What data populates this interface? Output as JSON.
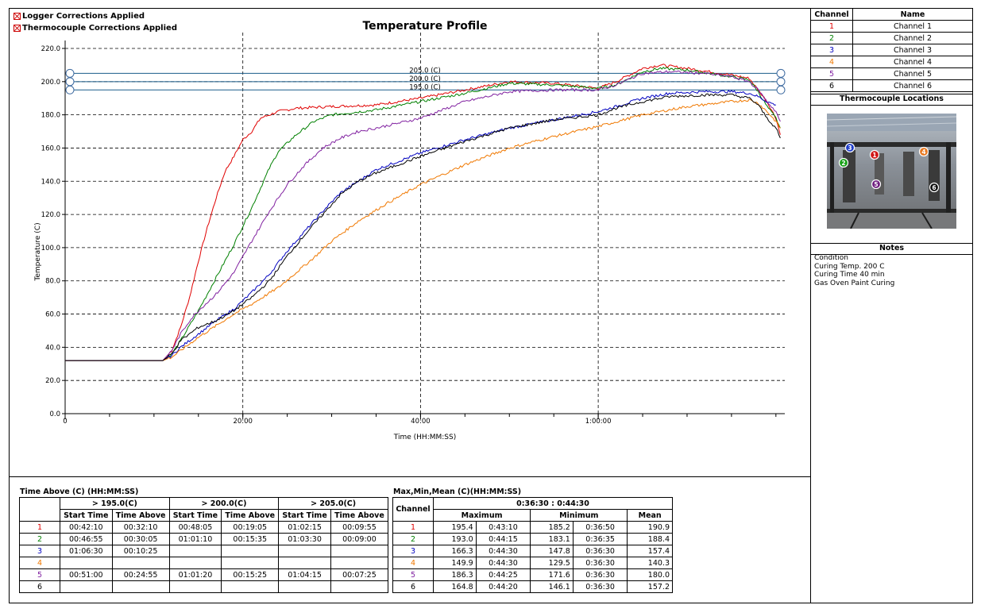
{
  "legend_flags": {
    "logger": "Logger Corrections Applied",
    "thermocouple": "Thermocouple Corrections Applied"
  },
  "chart_data": {
    "type": "line",
    "title": "Temperature Profile",
    "xlabel": "Time (HH:MM:SS)",
    "ylabel": "Temperature (C)",
    "xlim": [
      0,
      81
    ],
    "ylim": [
      0,
      220
    ],
    "x_unit": "minutes",
    "x_ticks": [
      {
        "value": 0,
        "label": "0"
      },
      {
        "value": 20,
        "label": "20:00"
      },
      {
        "value": 40,
        "label": "40:00"
      },
      {
        "value": 60,
        "label": "1:00:00"
      }
    ],
    "y_ticks": [
      "0.0",
      "20.0",
      "40.0",
      "60.0",
      "80.0",
      "100.0",
      "120.0",
      "140.0",
      "160.0",
      "180.0",
      "200.0",
      "220.0"
    ],
    "grid": true,
    "thresholds": [
      {
        "value": 205,
        "label": "205.0 (C)"
      },
      {
        "value": 200,
        "label": "200.0 (C)"
      },
      {
        "value": 195,
        "label": "195.0 (C)"
      }
    ],
    "series": [
      {
        "name": "Channel 1",
        "color": "#e00000",
        "points": [
          [
            0,
            32
          ],
          [
            11,
            32
          ],
          [
            12,
            38
          ],
          [
            13,
            52
          ],
          [
            14,
            70
          ],
          [
            15,
            92
          ],
          [
            16,
            112
          ],
          [
            17,
            130
          ],
          [
            18,
            146
          ],
          [
            19,
            155
          ],
          [
            20,
            165
          ],
          [
            21,
            170
          ],
          [
            22,
            178
          ],
          [
            24,
            182
          ],
          [
            26,
            184
          ],
          [
            30,
            185
          ],
          [
            35,
            186
          ],
          [
            40,
            190
          ],
          [
            45,
            195
          ],
          [
            50,
            200
          ],
          [
            55,
            199
          ],
          [
            60,
            196
          ],
          [
            62,
            200
          ],
          [
            65,
            208
          ],
          [
            67,
            210
          ],
          [
            70,
            208
          ],
          [
            75,
            204
          ],
          [
            77,
            202
          ],
          [
            78,
            195
          ],
          [
            79,
            188
          ],
          [
            80,
            178
          ],
          [
            80.5,
            168
          ]
        ]
      },
      {
        "name": "Channel 2",
        "color": "#008000",
        "points": [
          [
            0,
            32
          ],
          [
            11,
            32
          ],
          [
            12,
            36
          ],
          [
            13,
            44
          ],
          [
            15,
            62
          ],
          [
            17,
            82
          ],
          [
            19,
            102
          ],
          [
            21,
            124
          ],
          [
            22,
            136
          ],
          [
            23,
            148
          ],
          [
            24,
            158
          ],
          [
            26,
            168
          ],
          [
            28,
            176
          ],
          [
            30,
            180
          ],
          [
            35,
            183
          ],
          [
            40,
            188
          ],
          [
            45,
            193
          ],
          [
            50,
            199
          ],
          [
            55,
            198
          ],
          [
            60,
            196
          ],
          [
            62,
            198
          ],
          [
            65,
            206
          ],
          [
            67,
            208
          ],
          [
            70,
            207
          ],
          [
            75,
            203
          ],
          [
            77,
            201
          ],
          [
            78,
            194
          ],
          [
            79,
            185
          ],
          [
            80,
            178
          ],
          [
            80.5,
            172
          ]
        ]
      },
      {
        "name": "Channel 3",
        "color": "#0000c0",
        "points": [
          [
            0,
            32
          ],
          [
            11,
            32
          ],
          [
            12,
            35
          ],
          [
            13,
            40
          ],
          [
            15,
            48
          ],
          [
            17,
            56
          ],
          [
            19,
            63
          ],
          [
            21,
            73
          ],
          [
            23,
            84
          ],
          [
            25,
            98
          ],
          [
            27,
            110
          ],
          [
            29,
            122
          ],
          [
            31,
            133
          ],
          [
            33,
            140
          ],
          [
            35,
            147
          ],
          [
            40,
            157
          ],
          [
            45,
            165
          ],
          [
            50,
            172
          ],
          [
            55,
            177
          ],
          [
            60,
            182
          ],
          [
            62,
            185
          ],
          [
            65,
            190
          ],
          [
            68,
            193
          ],
          [
            72,
            194
          ],
          [
            75,
            194
          ],
          [
            77,
            193
          ],
          [
            78,
            191
          ],
          [
            79,
            188
          ],
          [
            80,
            186
          ]
        ]
      },
      {
        "name": "Channel 4",
        "color": "#f07800",
        "points": [
          [
            0,
            32
          ],
          [
            11,
            32
          ],
          [
            12,
            34
          ],
          [
            13,
            38
          ],
          [
            15,
            46
          ],
          [
            17,
            53
          ],
          [
            19,
            60
          ],
          [
            21,
            66
          ],
          [
            24,
            76
          ],
          [
            26,
            85
          ],
          [
            28,
            94
          ],
          [
            30,
            104
          ],
          [
            33,
            116
          ],
          [
            36,
            126
          ],
          [
            40,
            138
          ],
          [
            45,
            150
          ],
          [
            50,
            160
          ],
          [
            55,
            167
          ],
          [
            60,
            173
          ],
          [
            65,
            180
          ],
          [
            70,
            185
          ],
          [
            75,
            188
          ],
          [
            77,
            189
          ],
          [
            78,
            187
          ],
          [
            79,
            182
          ],
          [
            80,
            176
          ],
          [
            80.5,
            172
          ]
        ]
      },
      {
        "name": "Channel 5",
        "color": "#8020a0",
        "points": [
          [
            0,
            32
          ],
          [
            11,
            32
          ],
          [
            12,
            38
          ],
          [
            13,
            48
          ],
          [
            14,
            56
          ],
          [
            15,
            62
          ],
          [
            17,
            72
          ],
          [
            19,
            85
          ],
          [
            21,
            104
          ],
          [
            23,
            122
          ],
          [
            25,
            138
          ],
          [
            27,
            150
          ],
          [
            29,
            160
          ],
          [
            31,
            166
          ],
          [
            33,
            170
          ],
          [
            35,
            172
          ],
          [
            40,
            178
          ],
          [
            42,
            182
          ],
          [
            45,
            188
          ],
          [
            50,
            194
          ],
          [
            55,
            195
          ],
          [
            60,
            195
          ],
          [
            62,
            198
          ],
          [
            65,
            205
          ],
          [
            68,
            206
          ],
          [
            72,
            205
          ],
          [
            75,
            203
          ],
          [
            77,
            200
          ],
          [
            78,
            195
          ],
          [
            79,
            188
          ],
          [
            80,
            182
          ],
          [
            80.5,
            176
          ]
        ]
      },
      {
        "name": "Channel 6",
        "color": "#000000",
        "points": [
          [
            0,
            32
          ],
          [
            11,
            32
          ],
          [
            12,
            36
          ],
          [
            13,
            44
          ],
          [
            15,
            52
          ],
          [
            17,
            56
          ],
          [
            19,
            62
          ],
          [
            21,
            70
          ],
          [
            23,
            80
          ],
          [
            25,
            95
          ],
          [
            27,
            108
          ],
          [
            29,
            120
          ],
          [
            31,
            132
          ],
          [
            33,
            140
          ],
          [
            35,
            145
          ],
          [
            40,
            155
          ],
          [
            45,
            164
          ],
          [
            50,
            172
          ],
          [
            55,
            177
          ],
          [
            60,
            180
          ],
          [
            62,
            184
          ],
          [
            65,
            188
          ],
          [
            68,
            191
          ],
          [
            72,
            192
          ],
          [
            75,
            192
          ],
          [
            77,
            190
          ],
          [
            78,
            186
          ],
          [
            79,
            178
          ],
          [
            80,
            172
          ],
          [
            80.5,
            166
          ]
        ]
      }
    ]
  },
  "channel_table": {
    "headers": [
      "Channel",
      "Name"
    ],
    "rows": [
      {
        "ch": "1",
        "name": "Channel 1",
        "color": "#e00000"
      },
      {
        "ch": "2",
        "name": "Channel 2",
        "color": "#008000"
      },
      {
        "ch": "3",
        "name": "Channel 3",
        "color": "#0000c0"
      },
      {
        "ch": "4",
        "name": "Channel 4",
        "color": "#f07800"
      },
      {
        "ch": "5",
        "name": "Channel 5",
        "color": "#8020a0"
      },
      {
        "ch": "6",
        "name": "Channel 6",
        "color": "#000000"
      }
    ]
  },
  "thermocouple_locations": {
    "title": "Thermocouple Locations",
    "markers": [
      {
        "label": "3",
        "color": "#1e3cc8"
      },
      {
        "label": "1",
        "color": "#d01818"
      },
      {
        "label": "4",
        "color": "#e87820"
      },
      {
        "label": "2",
        "color": "#18a018"
      },
      {
        "label": "5",
        "color": "#702080"
      },
      {
        "label": "6",
        "color": "#101010"
      }
    ]
  },
  "notes": {
    "title": "Notes",
    "lines": [
      "Condition",
      "Curing Temp. 200 C",
      "Curing Time 40 min",
      "Gas Oven Paint Curing"
    ]
  },
  "time_above": {
    "caption": "Time Above (C) (HH:MM:SS)",
    "groups": [
      "> 195.0(C)",
      "> 200.0(C)",
      "> 205.0(C)"
    ],
    "sub_headers": [
      "Start Time",
      "Time Above"
    ],
    "rows": [
      {
        "ch": "1",
        "color": "#e00000",
        "cells": [
          "00:42:10",
          "00:32:10",
          "00:48:05",
          "00:19:05",
          "01:02:15",
          "00:09:55"
        ]
      },
      {
        "ch": "2",
        "color": "#008000",
        "cells": [
          "00:46:55",
          "00:30:05",
          "01:01:10",
          "00:15:35",
          "01:03:30",
          "00:09:00"
        ]
      },
      {
        "ch": "3",
        "color": "#0000c0",
        "cells": [
          "01:06:30",
          "00:10:25",
          "",
          "",
          "",
          ""
        ]
      },
      {
        "ch": "4",
        "color": "#f07800",
        "cells": [
          "",
          "",
          "",
          "",
          "",
          ""
        ]
      },
      {
        "ch": "5",
        "color": "#8020a0",
        "cells": [
          "00:51:00",
          "00:24:55",
          "01:01:20",
          "00:15:25",
          "01:04:15",
          "00:07:25"
        ]
      },
      {
        "ch": "6",
        "color": "#000000",
        "cells": [
          "",
          "",
          "",
          "",
          "",
          ""
        ]
      }
    ]
  },
  "max_min_mean": {
    "caption": "Max,Min,Mean (C)(HH:MM:SS)",
    "range": "0:36:30 : 0:44:30",
    "headers": [
      "Channel",
      "Maximum",
      "Minimum",
      "Mean"
    ],
    "rows": [
      {
        "ch": "1",
        "color": "#e00000",
        "cells": [
          "195.4",
          "0:43:10",
          "185.2",
          "0:36:50",
          "190.9"
        ]
      },
      {
        "ch": "2",
        "color": "#008000",
        "cells": [
          "193.0",
          "0:44:15",
          "183.1",
          "0:36:35",
          "188.4"
        ]
      },
      {
        "ch": "3",
        "color": "#0000c0",
        "cells": [
          "166.3",
          "0:44:30",
          "147.8",
          "0:36:30",
          "157.4"
        ]
      },
      {
        "ch": "4",
        "color": "#f07800",
        "cells": [
          "149.9",
          "0:44:30",
          "129.5",
          "0:36:30",
          "140.3"
        ]
      },
      {
        "ch": "5",
        "color": "#8020a0",
        "cells": [
          "186.3",
          "0:44:25",
          "171.6",
          "0:36:30",
          "180.0"
        ]
      },
      {
        "ch": "6",
        "color": "#000000",
        "cells": [
          "164.8",
          "0:44:20",
          "146.1",
          "0:36:30",
          "157.2"
        ]
      }
    ]
  }
}
